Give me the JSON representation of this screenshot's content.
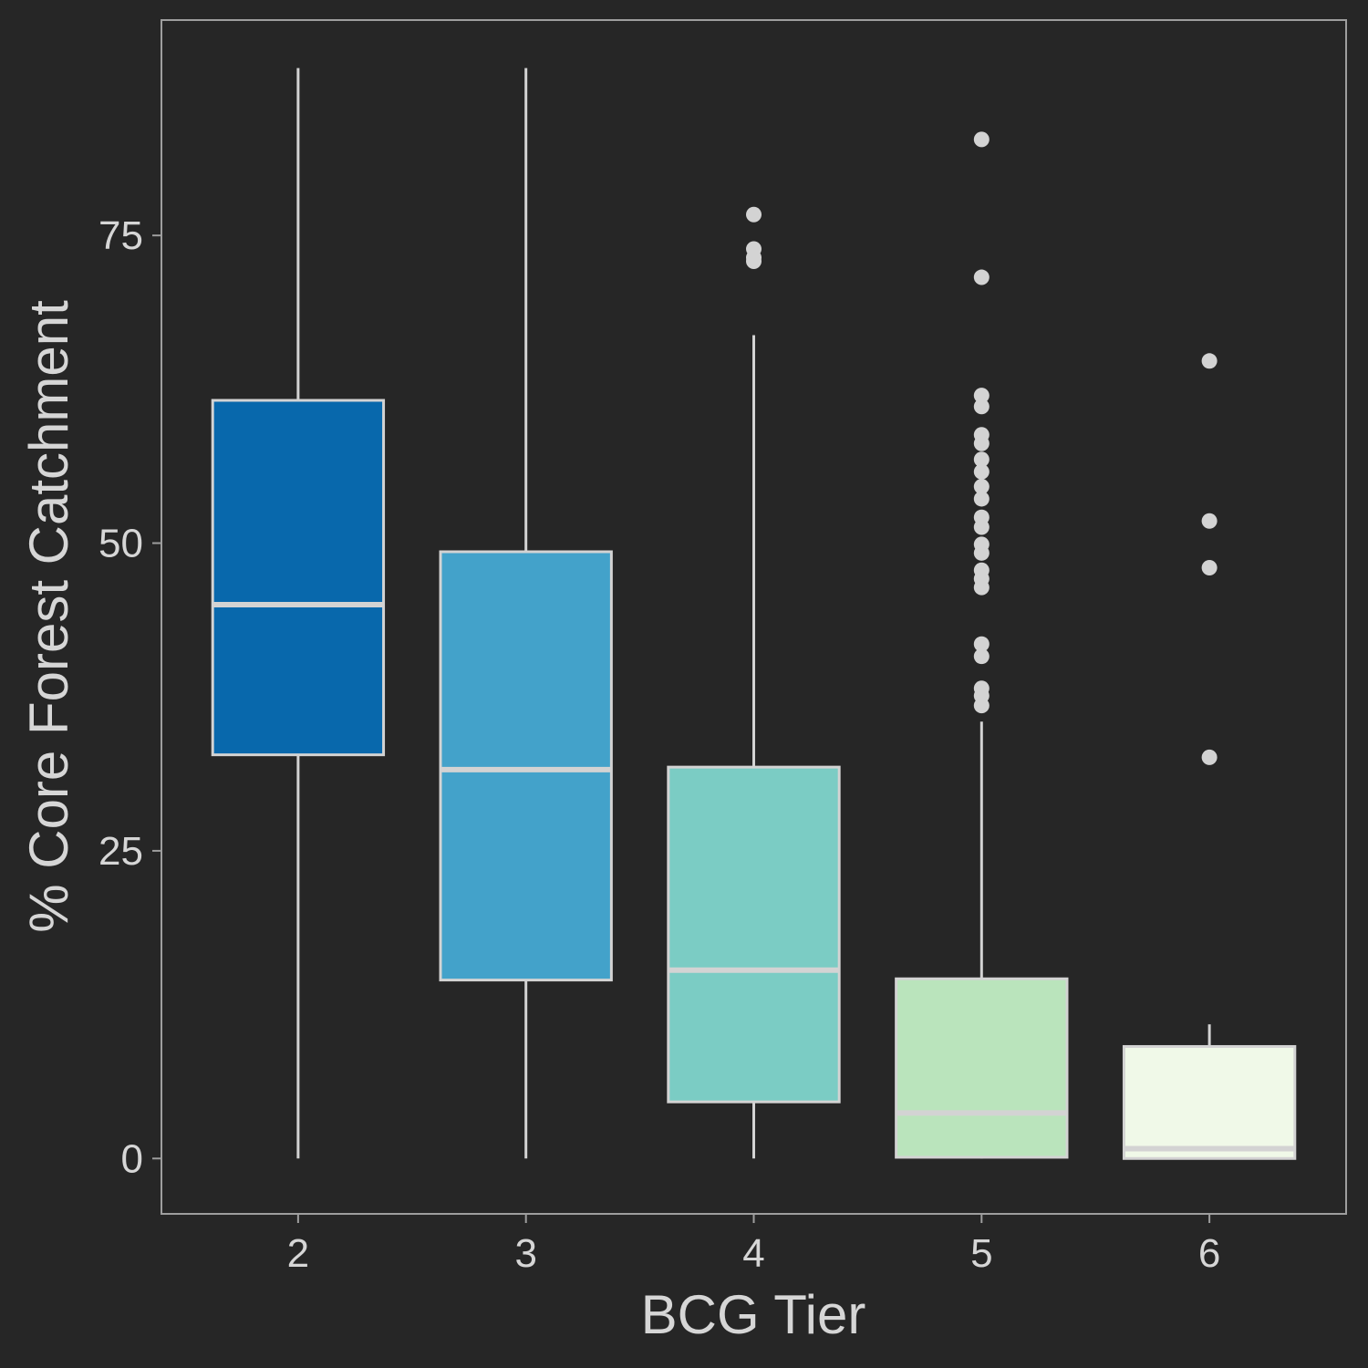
{
  "chart_data": {
    "type": "boxplot",
    "title": "",
    "xlabel": "BCG Tier",
    "ylabel": "% Core Forest Catchment",
    "categories": [
      "2",
      "3",
      "4",
      "5",
      "6"
    ],
    "yticks": [
      0,
      25,
      50,
      75
    ],
    "ylim": [
      -4.5,
      92.5
    ],
    "grid": false,
    "boxes": [
      {
        "category": "2",
        "whisker_low": 0,
        "q1": 32.8,
        "median": 45.0,
        "q3": 61.6,
        "whisker_high": 88.6,
        "fill": "#0868ac",
        "outliers": []
      },
      {
        "category": "3",
        "whisker_low": 0,
        "q1": 14.5,
        "median": 31.6,
        "q3": 49.3,
        "whisker_high": 88.6,
        "fill": "#43a2ca",
        "outliers": []
      },
      {
        "category": "4",
        "whisker_low": 0,
        "q1": 4.6,
        "median": 15.3,
        "q3": 31.8,
        "whisker_high": 66.9,
        "fill": "#7bccc4",
        "outliers": [
          72.9,
          73.2,
          73.9,
          76.7
        ]
      },
      {
        "category": "5",
        "whisker_low": 0,
        "q1": 0.1,
        "median": 3.7,
        "q3": 14.6,
        "whisker_high": 35.5,
        "fill": "#bae4bc",
        "outliers": [
          36.8,
          37.6,
          38.2,
          40.8,
          41.8,
          46.4,
          47.1,
          47.8,
          49.2,
          49.9,
          51.3,
          52.1,
          53.6,
          54.6,
          55.8,
          56.8,
          58.1,
          58.8,
          61.1,
          62.0,
          71.6,
          82.8
        ]
      },
      {
        "category": "6",
        "whisker_low": 0,
        "q1": 0,
        "median": 0.8,
        "q3": 9.1,
        "whisker_high": 10.9,
        "fill": "#f0f9e8",
        "outliers": [
          32.6,
          48.0,
          51.8,
          64.8
        ]
      }
    ],
    "colors": {
      "background": "#262626",
      "panel_border": "#9e9e9e",
      "line": "#d3d3d3",
      "text": "#d6d6d6"
    }
  }
}
